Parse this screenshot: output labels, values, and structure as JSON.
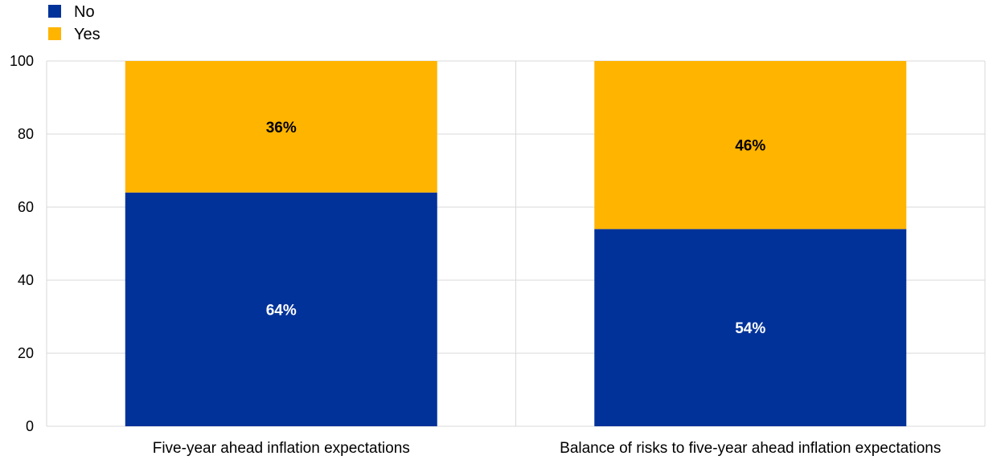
{
  "chart_data": {
    "type": "bar",
    "stacked": true,
    "categories": [
      "Five-year ahead inflation expectations",
      "Balance of risks to five-year ahead inflation expectations"
    ],
    "series": [
      {
        "name": "No",
        "values": [
          64,
          54
        ],
        "labels": [
          "64%",
          "54%"
        ],
        "color": "#003299"
      },
      {
        "name": "Yes",
        "values": [
          36,
          46
        ],
        "labels": [
          "36%",
          "46%"
        ],
        "color": "#FFB400"
      }
    ],
    "yticks": [
      "0",
      "20",
      "40",
      "60",
      "80",
      "100"
    ],
    "ylim": [
      0,
      100
    ],
    "title": "",
    "xlabel": "",
    "ylabel": "",
    "grid": true,
    "legend_position": "top-left",
    "colors": {
      "grid": "#d9d9d9",
      "axis": "#d9d9d9",
      "text": "#000000",
      "label_on_dark": "#ffffff",
      "label_on_light": "#000000"
    }
  }
}
